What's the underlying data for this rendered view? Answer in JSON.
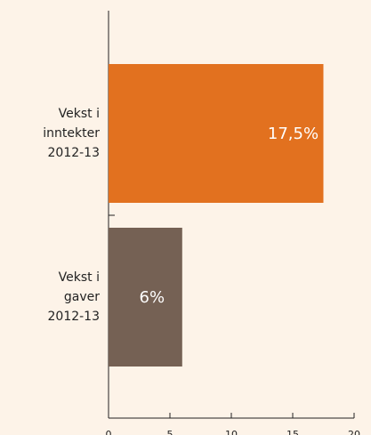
{
  "chart_data": {
    "type": "barh",
    "categories": [
      "Vekst i\ninntekter\n2012-13",
      "Vekst i\ngaver\n2012-13"
    ],
    "values": [
      17.5,
      6
    ],
    "value_labels": [
      "17,5%",
      "6%"
    ],
    "colors": [
      "#e2711f",
      "#756154"
    ],
    "xlim": [
      0,
      20
    ],
    "xticks": [
      0,
      5,
      10,
      15,
      20
    ]
  }
}
